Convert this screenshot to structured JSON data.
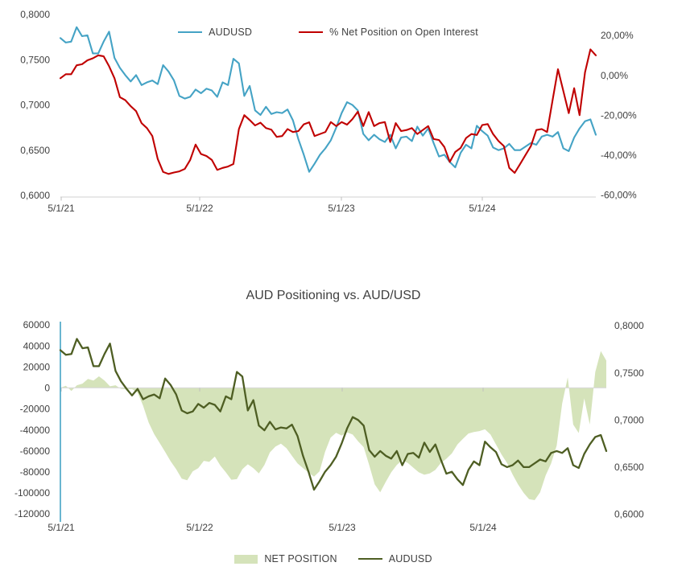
{
  "page": {
    "background": "#ffffff",
    "text_color": "#3f3f3f",
    "axis_line_color": "#d9d9d9"
  },
  "chart_data": [
    {
      "id": "top-chart",
      "type": "line",
      "title": "",
      "legend": [
        {
          "label": "AUDUSD",
          "color": "#45a3c5",
          "swatch": "line"
        },
        {
          "label": "% Net Position on Open Interest",
          "color": "#c00000",
          "swatch": "line"
        }
      ],
      "x_tick_labels": [
        "5/1/21",
        "5/1/22",
        "5/1/23",
        "5/1/24"
      ],
      "axes": {
        "left": {
          "tick_labels": [
            "0,8000",
            "0,7500",
            "0,7000",
            "0,6500",
            "0,6000"
          ],
          "tick_values": [
            0.8,
            0.75,
            0.7,
            0.65,
            0.6
          ],
          "range": [
            0.6,
            0.8
          ]
        },
        "right": {
          "tick_labels": [
            "20,00%",
            "0,00%",
            "-20,00%",
            "-40,00%",
            "-60,00%"
          ],
          "tick_values": [
            20,
            0,
            -20,
            -40,
            -60
          ],
          "range": [
            -60,
            20
          ]
        }
      },
      "grid": "off",
      "legend_position": "top",
      "series": [
        {
          "name": "AUDUSD",
          "axis": "left",
          "type": "line",
          "color": "#45a3c5",
          "values": [
            0.774,
            0.769,
            0.77,
            0.786,
            0.776,
            0.777,
            0.757,
            0.757,
            0.77,
            0.781,
            0.752,
            0.741,
            0.733,
            0.726,
            0.733,
            0.722,
            0.725,
            0.727,
            0.723,
            0.744,
            0.737,
            0.727,
            0.71,
            0.707,
            0.709,
            0.717,
            0.713,
            0.718,
            0.716,
            0.709,
            0.725,
            0.722,
            0.751,
            0.746,
            0.71,
            0.721,
            0.694,
            0.689,
            0.698,
            0.69,
            0.692,
            0.691,
            0.695,
            0.683,
            0.662,
            0.645,
            0.626,
            0.635,
            0.645,
            0.652,
            0.661,
            0.675,
            0.691,
            0.703,
            0.7,
            0.694,
            0.668,
            0.661,
            0.667,
            0.662,
            0.659,
            0.667,
            0.652,
            0.664,
            0.665,
            0.66,
            0.676,
            0.666,
            0.674,
            0.658,
            0.643,
            0.645,
            0.637,
            0.631,
            0.647,
            0.656,
            0.652,
            0.677,
            0.671,
            0.666,
            0.653,
            0.65,
            0.652,
            0.657,
            0.65,
            0.65,
            0.654,
            0.658,
            0.656,
            0.665,
            0.667,
            0.665,
            0.67,
            0.652,
            0.649,
            0.664,
            0.674,
            0.682,
            0.684,
            0.667
          ]
        },
        {
          "name": "% Net Position on Open Interest",
          "axis": "right",
          "type": "line",
          "color": "#c00000",
          "values": [
            -1.5,
            0.5,
            0.5,
            5.0,
            5.5,
            7.5,
            8.5,
            10.0,
            9.5,
            4.5,
            -1.5,
            -11.0,
            -12.5,
            -15.5,
            -18.0,
            -24.0,
            -26.5,
            -30.5,
            -42.0,
            -48.5,
            -49.5,
            -48.8,
            -48.2,
            -47.0,
            -42.5,
            -34.8,
            -39.5,
            -40.5,
            -42.5,
            -47.5,
            -46.5,
            -45.8,
            -44.5,
            -27.0,
            -20.0,
            -22.5,
            -25.2,
            -23.8,
            -26.5,
            -27.3,
            -30.9,
            -30.5,
            -27.0,
            -28.5,
            -28.0,
            -24.6,
            -23.6,
            -30.5,
            -29.5,
            -28.5,
            -23.5,
            -25.5,
            -23.5,
            -24.8,
            -22.0,
            -18.3,
            -25.5,
            -18.5,
            -25.5,
            -24.0,
            -23.5,
            -33.5,
            -24.0,
            -28.0,
            -27.5,
            -26.5,
            -29.5,
            -27.5,
            -25.5,
            -32.0,
            -32.5,
            -36.0,
            -43.5,
            -38.5,
            -36.5,
            -31.5,
            -29.5,
            -30.0,
            -25.0,
            -24.5,
            -29.5,
            -33.0,
            -35.5,
            -46.5,
            -49.0,
            -44.5,
            -40.0,
            -35.5,
            -27.5,
            -27.0,
            -28.5,
            -12.5,
            3.0,
            -8.0,
            -19.0,
            -6.5,
            -20.0,
            1.5,
            13.0,
            10.0
          ]
        }
      ]
    },
    {
      "id": "bottom-chart",
      "type": "area+line",
      "title": "AUD Positioning vs. AUD/USD",
      "legend": [
        {
          "label": "NET POSITION",
          "color": "#d5e3ba",
          "swatch": "rect"
        },
        {
          "label": "AUDUSD",
          "color": "#4e5e23",
          "swatch": "line"
        }
      ],
      "x_tick_labels": [
        "5/1/21",
        "5/1/22",
        "5/1/23",
        "5/1/24"
      ],
      "axes": {
        "left": {
          "tick_labels": [
            "60000",
            "40000",
            "20000",
            "0",
            "-20000",
            "-40000",
            "-60000",
            "-80000",
            "-100000",
            "-120000"
          ],
          "tick_values": [
            60000,
            40000,
            20000,
            0,
            -20000,
            -40000,
            -60000,
            -80000,
            -100000,
            -120000
          ],
          "range": [
            -120000,
            60000
          ],
          "axis_line_color": "#45a3c5"
        },
        "right": {
          "tick_labels": [
            "0,8000",
            "0,7500",
            "0,7000",
            "0,6500",
            "0,6000"
          ],
          "tick_values": [
            0.8,
            0.75,
            0.7,
            0.65,
            0.6
          ],
          "range": [
            0.6,
            0.8
          ]
        }
      },
      "grid": "off",
      "legend_position": "bottom",
      "series": [
        {
          "name": "NET POSITION",
          "axis": "left",
          "type": "area",
          "color": "#d5e3ba",
          "values": [
            0,
            2000,
            -3000,
            2500,
            4000,
            8500,
            7000,
            11000,
            7000,
            1500,
            2500,
            -1000,
            -1500,
            -1200,
            -4500,
            -17000,
            -33000,
            -44000,
            -52500,
            -61000,
            -70000,
            -77500,
            -86500,
            -88000,
            -79500,
            -76500,
            -69500,
            -70500,
            -65500,
            -74000,
            -80500,
            -87500,
            -87000,
            -77500,
            -72800,
            -76500,
            -81500,
            -73500,
            -61500,
            -56000,
            -53200,
            -57500,
            -64800,
            -72000,
            -76400,
            -80800,
            -84600,
            -79500,
            -61000,
            -47500,
            -42800,
            -45400,
            -42500,
            -44500,
            -51000,
            -56500,
            -73500,
            -92000,
            -99500,
            -89500,
            -80500,
            -73500,
            -68800,
            -71500,
            -76000,
            -80500,
            -82800,
            -81500,
            -78200,
            -71500,
            -67500,
            -62500,
            -54000,
            -48500,
            -43500,
            -42000,
            -41200,
            -39500,
            -44500,
            -54000,
            -63500,
            -71500,
            -82500,
            -92000,
            -100000,
            -106000,
            -107000,
            -99500,
            -83500,
            -72000,
            -55000,
            -15000,
            10000,
            -35000,
            -43000,
            -10000,
            -35000,
            15000,
            35000,
            26000
          ]
        },
        {
          "name": "AUDUSD",
          "axis": "right",
          "type": "line",
          "color": "#4e5e23",
          "values": [
            0.774,
            0.769,
            0.77,
            0.786,
            0.776,
            0.777,
            0.757,
            0.757,
            0.77,
            0.781,
            0.752,
            0.741,
            0.733,
            0.726,
            0.733,
            0.722,
            0.725,
            0.727,
            0.723,
            0.744,
            0.737,
            0.727,
            0.71,
            0.707,
            0.709,
            0.717,
            0.713,
            0.718,
            0.716,
            0.709,
            0.725,
            0.722,
            0.751,
            0.746,
            0.71,
            0.721,
            0.694,
            0.689,
            0.698,
            0.69,
            0.692,
            0.691,
            0.695,
            0.683,
            0.662,
            0.645,
            0.626,
            0.635,
            0.645,
            0.652,
            0.661,
            0.675,
            0.691,
            0.703,
            0.7,
            0.694,
            0.668,
            0.661,
            0.667,
            0.662,
            0.659,
            0.667,
            0.652,
            0.664,
            0.665,
            0.66,
            0.676,
            0.666,
            0.674,
            0.658,
            0.643,
            0.645,
            0.637,
            0.631,
            0.647,
            0.656,
            0.652,
            0.677,
            0.671,
            0.666,
            0.653,
            0.65,
            0.652,
            0.657,
            0.65,
            0.65,
            0.654,
            0.658,
            0.656,
            0.665,
            0.667,
            0.665,
            0.67,
            0.652,
            0.649,
            0.664,
            0.674,
            0.682,
            0.684,
            0.667
          ]
        }
      ]
    }
  ]
}
